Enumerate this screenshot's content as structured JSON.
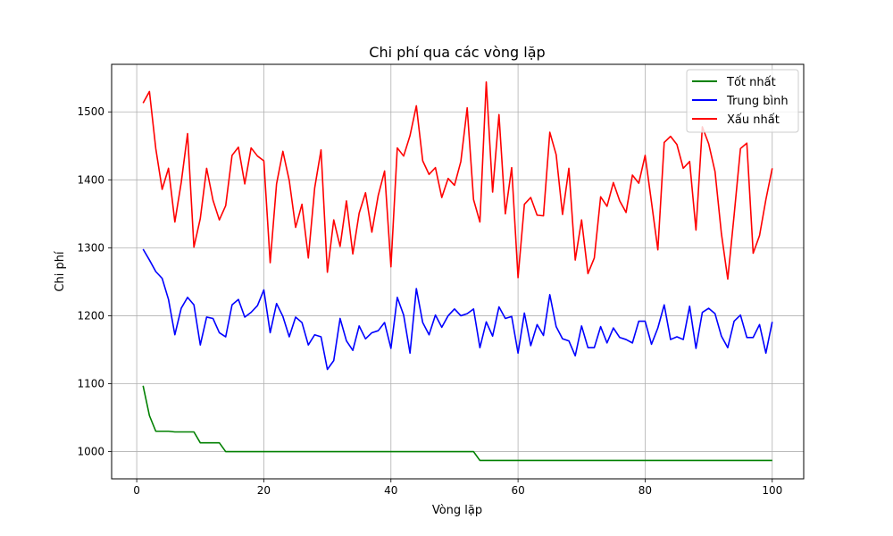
{
  "chart_data": {
    "type": "line",
    "title": "Chi phí qua các vòng lặp",
    "xlabel": "Vòng lặp",
    "ylabel": "Chi phí",
    "xlim": [
      -3.95,
      104.95
    ],
    "ylim": [
      960,
      1570
    ],
    "xticks": [
      0,
      20,
      40,
      60,
      80,
      100
    ],
    "yticks": [
      1000,
      1100,
      1200,
      1300,
      1400,
      1500
    ],
    "grid": true,
    "legend_position": "top-right",
    "series": [
      {
        "name": "Tốt nhất",
        "color": "#008000",
        "values": [
          1097,
          1053,
          1030,
          1030,
          1030,
          1029,
          1029,
          1029,
          1029,
          1013,
          1013,
          1013,
          1013,
          1000,
          1000,
          1000,
          1000,
          1000,
          1000,
          1000,
          1000,
          1000,
          1000,
          1000,
          1000,
          1000,
          1000,
          1000,
          1000,
          1000,
          1000,
          1000,
          1000,
          1000,
          1000,
          1000,
          1000,
          1000,
          1000,
          1000,
          1000,
          1000,
          1000,
          1000,
          1000,
          1000,
          1000,
          1000,
          1000,
          1000,
          1000,
          1000,
          1000,
          987,
          987,
          987,
          987,
          987,
          987,
          987,
          987,
          987,
          987,
          987,
          987,
          987,
          987,
          987,
          987,
          987,
          987,
          987,
          987,
          987,
          987,
          987,
          987,
          987,
          987,
          987,
          987,
          987,
          987,
          987,
          987,
          987,
          987,
          987,
          987,
          987,
          987,
          987,
          987,
          987,
          987,
          987,
          987,
          987,
          987,
          987
        ]
      },
      {
        "name": "Trung bình",
        "color": "#0000ff",
        "values": [
          1298,
          1282,
          1265,
          1255,
          1224,
          1172,
          1211,
          1227,
          1216,
          1157,
          1198,
          1196,
          1175,
          1169,
          1216,
          1224,
          1198,
          1205,
          1215,
          1238,
          1175,
          1218,
          1199,
          1169,
          1198,
          1190,
          1157,
          1172,
          1169,
          1121,
          1134,
          1196,
          1163,
          1149,
          1185,
          1166,
          1175,
          1178,
          1190,
          1152,
          1227,
          1201,
          1145,
          1240,
          1190,
          1172,
          1201,
          1183,
          1200,
          1210,
          1200,
          1203,
          1210,
          1153,
          1191,
          1170,
          1213,
          1196,
          1199,
          1145,
          1204,
          1156,
          1187,
          1171,
          1231,
          1184,
          1166,
          1163,
          1141,
          1185,
          1153,
          1153,
          1184,
          1160,
          1182,
          1168,
          1165,
          1160,
          1192,
          1192,
          1158,
          1182,
          1216,
          1165,
          1169,
          1165,
          1214,
          1152,
          1205,
          1211,
          1203,
          1170,
          1153,
          1192,
          1201,
          1168,
          1168,
          1187,
          1145,
          1191
        ]
      },
      {
        "name": "Xấu nhất",
        "color": "#ff0000",
        "values": [
          1513,
          1530,
          1446,
          1386,
          1417,
          1338,
          1396,
          1468,
          1301,
          1343,
          1417,
          1370,
          1341,
          1362,
          1436,
          1448,
          1394,
          1447,
          1435,
          1428,
          1278,
          1394,
          1442,
          1399,
          1330,
          1364,
          1285,
          1388,
          1444,
          1264,
          1341,
          1302,
          1369,
          1291,
          1351,
          1381,
          1323,
          1377,
          1413,
          1272,
          1447,
          1435,
          1465,
          1509,
          1428,
          1408,
          1418,
          1374,
          1402,
          1392,
          1427,
          1506,
          1371,
          1338,
          1544,
          1382,
          1496,
          1350,
          1418,
          1256,
          1364,
          1374,
          1348,
          1347,
          1470,
          1437,
          1349,
          1417,
          1282,
          1341,
          1262,
          1285,
          1375,
          1361,
          1396,
          1369,
          1352,
          1407,
          1395,
          1436,
          1367,
          1297,
          1455,
          1464,
          1452,
          1417,
          1427,
          1326,
          1478,
          1453,
          1412,
          1321,
          1254,
          1348,
          1446,
          1454,
          1292,
          1318,
          1371,
          1417
        ]
      }
    ]
  }
}
